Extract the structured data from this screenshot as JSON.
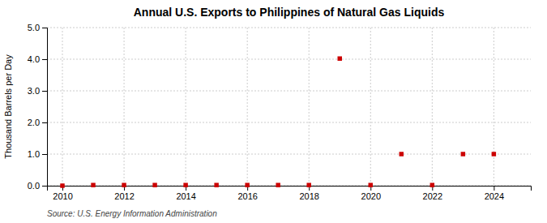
{
  "chart_data": {
    "type": "scatter",
    "title": "Annual U.S. Exports to Philippines of Natural Gas Liquids",
    "ylabel": "Thousand Barrels per Day",
    "annotation": "Source: U.S. Energy Information Administration",
    "x": [
      2010,
      2011,
      2012,
      2013,
      2014,
      2015,
      2016,
      2017,
      2018,
      2019,
      2020,
      2021,
      2022,
      2023,
      2024
    ],
    "values": [
      0.0,
      0.02,
      0.02,
      0.02,
      0.02,
      0.02,
      0.02,
      0.02,
      0.02,
      4.02,
      0.02,
      1.0,
      0.02,
      1.0,
      1.0
    ],
    "color": "#CC0000",
    "marker": "square",
    "xlim": [
      2009.5,
      2025.2
    ],
    "ylim": [
      0.0,
      5.0
    ],
    "xticks": [
      2010,
      2012,
      2014,
      2016,
      2018,
      2020,
      2022,
      2024
    ],
    "yticks": [
      {
        "value": 0.0,
        "label": "0.0"
      },
      {
        "value": 1.0,
        "label": "1.0"
      },
      {
        "value": 2.0,
        "label": "2.0"
      },
      {
        "value": 3.0,
        "label": "3.0"
      },
      {
        "value": 4.0,
        "label": "4.0"
      },
      {
        "value": 5.0,
        "label": "5.0"
      }
    ],
    "grid": true
  }
}
